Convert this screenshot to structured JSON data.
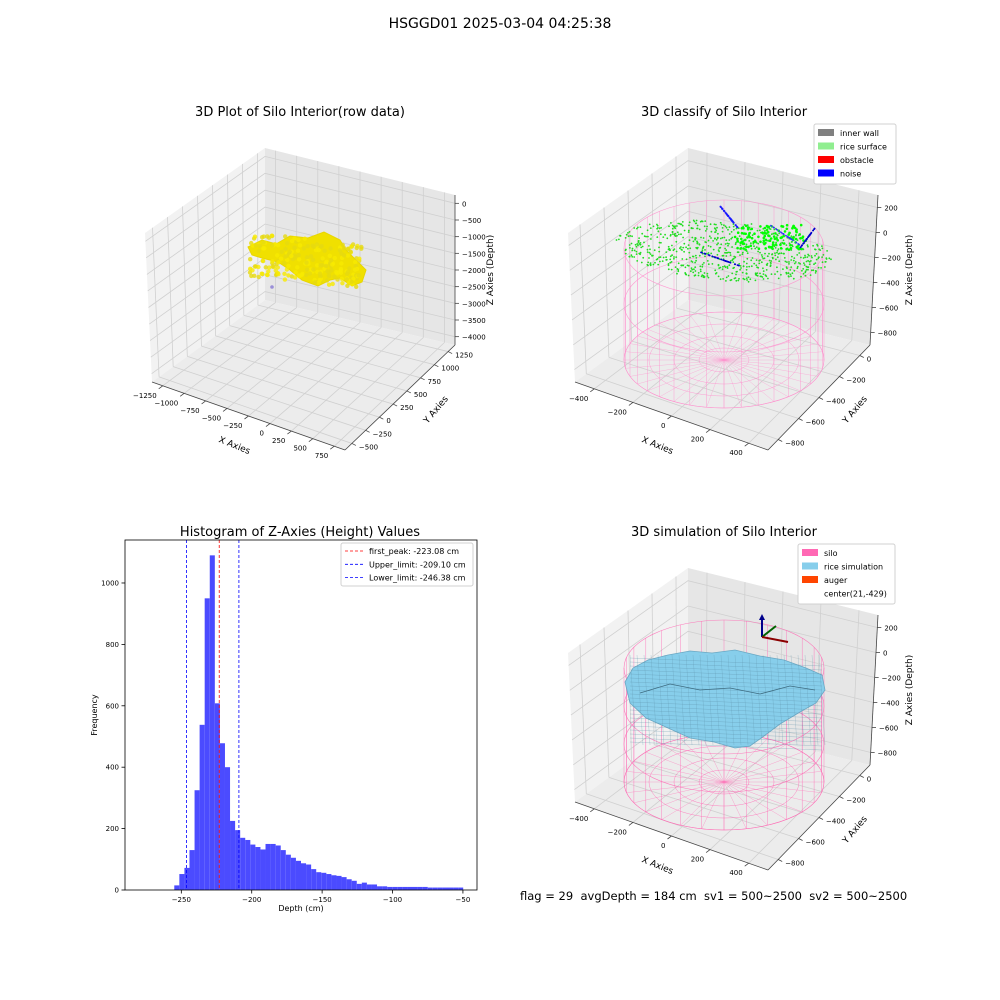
{
  "suptitle": "HSGGD01 2025-03-04 04:25:38",
  "status_line": "flag = 29  avgDepth = 184 cm  sv1 = 500~2500  sv2 = 500~2500",
  "chart_data": [
    {
      "type": "scatter",
      "title": "3D Plot of Silo Interior(row data)",
      "xlabel": "X Axies",
      "ylabel": "Y Axies",
      "zlabel": "Z Axies (Depth)",
      "xticks": [
        "−1250",
        "−1000",
        "−750",
        "−500",
        "−250",
        "0",
        "250",
        "500",
        "750"
      ],
      "yticks": [
        "−500",
        "−250",
        "0",
        "250",
        "500",
        "750",
        "1000",
        "1250"
      ],
      "zticks": [
        "0",
        "−500",
        "−1000",
        "−1500",
        "−2000",
        "−2500",
        "−3000",
        "−3500",
        "−4000"
      ],
      "xlim": [
        -1300,
        800
      ],
      "ylim": [
        -600,
        1400
      ],
      "zlim": [
        -4200,
        200
      ],
      "point_color": "#f0e000"
    },
    {
      "type": "scatter",
      "title": "3D classify of Silo Interior",
      "xlabel": "X Axies",
      "ylabel": "Y Axies",
      "zlabel": "Z Axies (Depth)",
      "xticks": [
        "−400",
        "−200",
        "0",
        "200",
        "400"
      ],
      "yticks": [
        "−800",
        "−600",
        "−400",
        "−200",
        "0"
      ],
      "zticks": [
        "200",
        "0",
        "−200",
        "−400",
        "−600",
        "−800"
      ],
      "legend": [
        {
          "label": "inner wall",
          "color": "#808080"
        },
        {
          "label": "rice surface",
          "color": "#90ee90"
        },
        {
          "label": "obstacle",
          "color": "#ff0000"
        },
        {
          "label": "noise",
          "color": "#0000ff"
        }
      ],
      "legend_position": "top-right"
    },
    {
      "type": "bar",
      "title": "Histogram of Z-Axies (Height) Values",
      "xlabel": "Depth (cm)",
      "ylabel": "Frequency",
      "xlim": [
        -290,
        -40
      ],
      "ylim": [
        0,
        1140
      ],
      "xticks": [
        -250,
        -200,
        -150,
        -100,
        -50
      ],
      "yticks": [
        0,
        200,
        400,
        600,
        800,
        1000
      ],
      "bin_edges": [
        -255,
        -251.4,
        -247.8,
        -244.2,
        -240.6,
        -237,
        -233.4,
        -229.8,
        -226.2,
        -222.6,
        -219,
        -215.4,
        -211.8,
        -208.2,
        -204.6,
        -201,
        -197.4,
        -193.8,
        -190.2,
        -186.6,
        -183,
        -179.4,
        -175.8,
        -172.2,
        -168.6,
        -165,
        -161.4,
        -157.8,
        -154.2,
        -150.6,
        -147,
        -143.4,
        -139.8,
        -136.2,
        -132.6,
        -129,
        -125.4,
        -121.8,
        -118.2,
        -114.6,
        -111,
        -107.4,
        -103.8,
        -100.2,
        -96.6,
        -93,
        -89.4,
        -85.8,
        -82.2,
        -78.6,
        -75,
        -71.4,
        -67.8,
        -64.2,
        -60.6,
        -57,
        -53.4,
        -49.8
      ],
      "values": [
        15,
        52,
        72,
        130,
        325,
        538,
        950,
        1090,
        608,
        478,
        400,
        225,
        195,
        170,
        163,
        148,
        140,
        132,
        150,
        150,
        145,
        130,
        115,
        105,
        95,
        87,
        83,
        68,
        58,
        56,
        52,
        48,
        46,
        42,
        35,
        30,
        20,
        24,
        18,
        18,
        12,
        12,
        10,
        10,
        10,
        10,
        10,
        10,
        10,
        10,
        8,
        8,
        8,
        8,
        8,
        8,
        8
      ],
      "bar_color": "#4b4bff",
      "vlines": [
        {
          "label": "first_peak: -223.08 cm",
          "x": -223.08,
          "color": "#ff0000"
        },
        {
          "label": "Upper_limit: -209.10 cm",
          "x": -209.1,
          "color": "#0000ff"
        },
        {
          "label": "Lower_limit: -246.38 cm",
          "x": -246.38,
          "color": "#0000ff"
        }
      ],
      "legend_position": "top-right"
    },
    {
      "type": "scatter",
      "title": "3D simulation of Silo Interior",
      "xlabel": "X Axies",
      "ylabel": "Y Axies",
      "zlabel": "Z Axies (Depth)",
      "xticks": [
        "−400",
        "−200",
        "0",
        "200",
        "400"
      ],
      "yticks": [
        "−800",
        "−600",
        "−400",
        "−200",
        "0"
      ],
      "zticks": [
        "200",
        "0",
        "−200",
        "−400",
        "−600",
        "−800"
      ],
      "legend": [
        {
          "label": "silo",
          "color": "#ff69b4"
        },
        {
          "label": "rice simulation",
          "color": "#87ceeb"
        },
        {
          "label": "auger",
          "color": "#ff4500"
        },
        {
          "label": "center(21,-429)",
          "color": ""
        }
      ],
      "legend_position": "top-right"
    }
  ]
}
